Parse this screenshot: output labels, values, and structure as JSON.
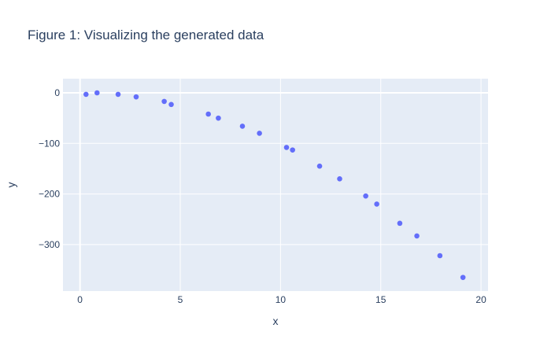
{
  "chart_data": {
    "type": "scatter",
    "title": "Figure 1:  Visualizing the generated data",
    "xlabel": "x",
    "ylabel": "y",
    "xlim": [
      -0.85,
      20.35
    ],
    "ylim": [
      -392,
      28
    ],
    "x_ticks": [
      0,
      5,
      10,
      15,
      20
    ],
    "x_tick_labels": [
      "0",
      "5",
      "10",
      "15",
      "20"
    ],
    "y_ticks": [
      0,
      -100,
      -200,
      -300
    ],
    "y_tick_labels": [
      "0",
      "−100",
      "−200",
      "−300"
    ],
    "grid": true,
    "legend": "none",
    "marker_color": "#636efa",
    "plot_background": "#e5ecf6",
    "series": [
      {
        "x": [
          0.3,
          0.85,
          1.9,
          2.8,
          4.2,
          4.55,
          6.4,
          6.9,
          8.1,
          8.95,
          10.3,
          10.6,
          11.95,
          12.95,
          14.25,
          14.8,
          15.95,
          16.8,
          17.95,
          19.1
        ],
        "y": [
          -3,
          0,
          -3,
          -8,
          -17,
          -23,
          -42,
          -50,
          -66,
          -80,
          -108,
          -113,
          -145,
          -170,
          -204,
          -220,
          -258,
          -283,
          -322,
          -365
        ]
      }
    ]
  }
}
